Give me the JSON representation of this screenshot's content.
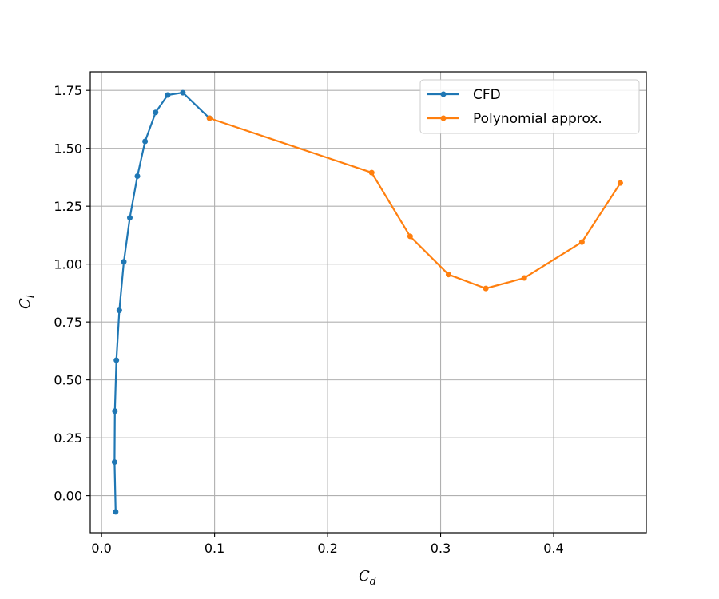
{
  "chart_data": {
    "type": "line",
    "title": "",
    "xlabel": {
      "main": "C",
      "sub": "d"
    },
    "ylabel": {
      "main": "C",
      "sub": "l"
    },
    "xlim": [
      -0.01,
      0.482
    ],
    "ylim": [
      -0.16,
      1.83
    ],
    "x_ticks": [
      0.0,
      0.1,
      0.2,
      0.3,
      0.4
    ],
    "x_tick_labels": [
      "0.0",
      "0.1",
      "0.2",
      "0.3",
      "0.4"
    ],
    "y_ticks": [
      0.0,
      0.25,
      0.5,
      0.75,
      1.0,
      1.25,
      1.5,
      1.75
    ],
    "y_tick_labels": [
      "0.00",
      "0.25",
      "0.50",
      "0.75",
      "1.00",
      "1.25",
      "1.50",
      "1.75"
    ],
    "grid": true,
    "legend_position": "top-right",
    "series": [
      {
        "name": "CFD",
        "color": "#1f77b4",
        "marker": "circle",
        "x": [
          0.0125,
          0.0115,
          0.0118,
          0.0131,
          0.0157,
          0.0197,
          0.025,
          0.0317,
          0.0385,
          0.0478,
          0.0585,
          0.0719,
          0.0955
        ],
        "y": [
          -0.07,
          0.145,
          0.365,
          0.585,
          0.8,
          1.01,
          1.2,
          1.38,
          1.53,
          1.655,
          1.73,
          1.74,
          1.63
        ]
      },
      {
        "name": "Polynomial approx.",
        "color": "#ff7f0e",
        "marker": "circle",
        "x": [
          0.0955,
          0.239,
          0.273,
          0.307,
          0.34,
          0.374,
          0.425,
          0.459
        ],
        "y": [
          1.63,
          1.395,
          1.12,
          0.955,
          0.895,
          0.94,
          1.095,
          1.35
        ]
      }
    ]
  }
}
